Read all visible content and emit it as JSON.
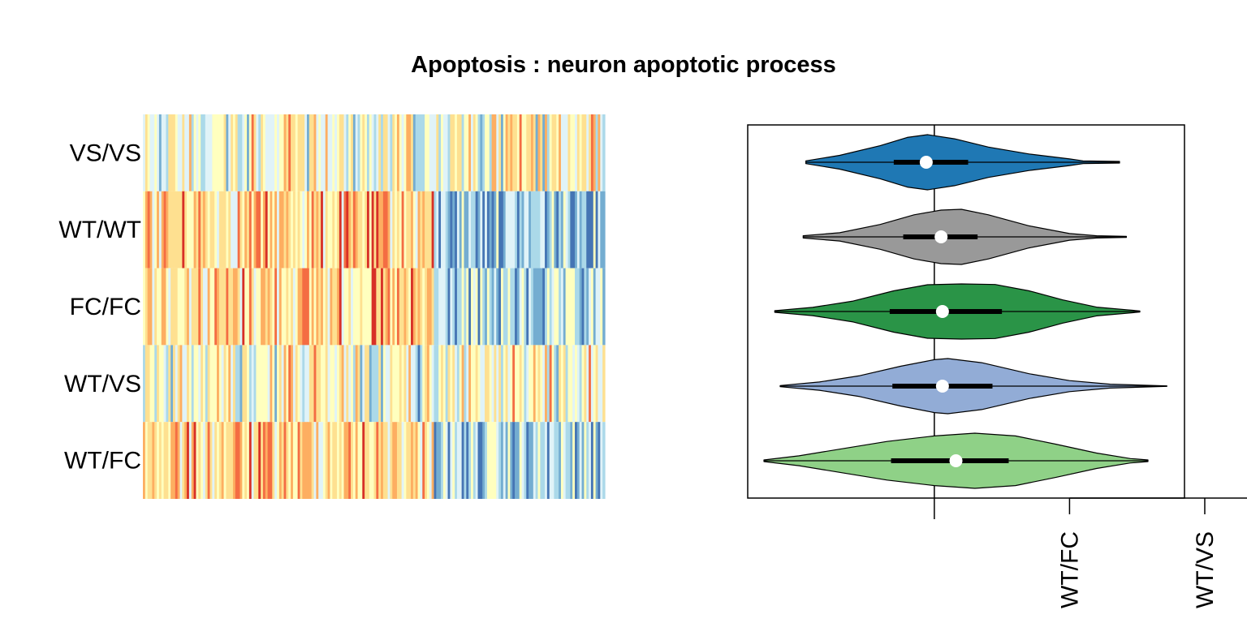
{
  "chart_data": [
    {
      "type": "heatmap",
      "title": "Apoptosis : neuron apoptotic process",
      "rows": [
        "VS/VS",
        "WT/WT",
        "FC/FC",
        "WT/VS",
        "WT/FC"
      ],
      "columns_count": 200,
      "color_scale": [
        "#d73027",
        "#f46d43",
        "#fdae61",
        "#fee090",
        "#ffffbf",
        "#e0f3f8",
        "#abd9e9",
        "#74add1",
        "#4575b4"
      ],
      "pattern": {
        "VS/VS": "mixed across all columns",
        "WT/WT": "warm (red/yellow) in left ~63% of columns, cool (blue) in right ~37%",
        "FC/FC": "warm (red/yellow) in left ~63% of columns, cool (blue) in right ~37%",
        "WT/VS": "mixed across all columns",
        "WT/FC": "warm (red/yellow) in left ~63% of columns, cool (blue) in right ~37%"
      }
    },
    {
      "type": "violin",
      "orientation": "horizontal",
      "reference_line": 0,
      "xlim": [
        -1.38,
        1.85
      ],
      "x_tick_labels": [
        {
          "value": 1.0,
          "label": "WT/FC"
        },
        {
          "value": 2.0,
          "label": "WT/VS"
        }
      ],
      "series": [
        {
          "name": "VS/VS",
          "color": "#1f78b4",
          "min": -0.95,
          "q1": -0.3,
          "median": -0.06,
          "q3": 0.25,
          "max": 1.37,
          "density": [
            [
              -0.95,
              0.05
            ],
            [
              -0.7,
              0.25
            ],
            [
              -0.4,
              0.6
            ],
            [
              -0.2,
              0.9
            ],
            [
              -0.05,
              1.0
            ],
            [
              0.15,
              0.85
            ],
            [
              0.4,
              0.55
            ],
            [
              0.7,
              0.3
            ],
            [
              1.0,
              0.12
            ],
            [
              1.1,
              0.05
            ],
            [
              1.37,
              0.03
            ]
          ]
        },
        {
          "name": "WT/WT",
          "color": "#999999",
          "min": -0.97,
          "q1": -0.23,
          "median": 0.05,
          "q3": 0.32,
          "max": 1.42,
          "density": [
            [
              -0.97,
              0.04
            ],
            [
              -0.7,
              0.15
            ],
            [
              -0.4,
              0.45
            ],
            [
              -0.15,
              0.8
            ],
            [
              0.05,
              0.97
            ],
            [
              0.2,
              1.0
            ],
            [
              0.4,
              0.8
            ],
            [
              0.7,
              0.4
            ],
            [
              1.0,
              0.12
            ],
            [
              1.2,
              0.04
            ],
            [
              1.42,
              0.02
            ]
          ]
        },
        {
          "name": "FC/FC",
          "color": "#2a9447",
          "min": -1.18,
          "q1": -0.33,
          "median": 0.06,
          "q3": 0.5,
          "max": 1.52,
          "density": [
            [
              -1.18,
              0.03
            ],
            [
              -0.9,
              0.15
            ],
            [
              -0.6,
              0.38
            ],
            [
              -0.3,
              0.75
            ],
            [
              -0.05,
              0.97
            ],
            [
              0.2,
              1.0
            ],
            [
              0.45,
              0.98
            ],
            [
              0.7,
              0.75
            ],
            [
              0.95,
              0.42
            ],
            [
              1.2,
              0.16
            ],
            [
              1.52,
              0.02
            ]
          ]
        },
        {
          "name": "WT/VS",
          "color": "#92acd6",
          "min": -1.14,
          "q1": -0.31,
          "median": 0.06,
          "q3": 0.43,
          "max": 1.72,
          "density": [
            [
              -1.14,
              0.02
            ],
            [
              -0.85,
              0.15
            ],
            [
              -0.55,
              0.38
            ],
            [
              -0.25,
              0.72
            ],
            [
              0.0,
              0.96
            ],
            [
              0.1,
              1.0
            ],
            [
              0.35,
              0.85
            ],
            [
              0.7,
              0.45
            ],
            [
              1.0,
              0.2
            ],
            [
              1.3,
              0.07
            ],
            [
              1.72,
              0.01
            ]
          ]
        },
        {
          "name": "WT/FC",
          "color": "#8fd187",
          "min": -1.26,
          "q1": -0.32,
          "median": 0.16,
          "q3": 0.55,
          "max": 1.58,
          "density": [
            [
              -1.26,
              0.03
            ],
            [
              -1.0,
              0.18
            ],
            [
              -0.7,
              0.42
            ],
            [
              -0.35,
              0.7
            ],
            [
              0.0,
              0.9
            ],
            [
              0.3,
              1.0
            ],
            [
              0.6,
              0.9
            ],
            [
              0.9,
              0.6
            ],
            [
              1.2,
              0.28
            ],
            [
              1.45,
              0.08
            ],
            [
              1.58,
              0.03
            ]
          ]
        }
      ]
    }
  ]
}
